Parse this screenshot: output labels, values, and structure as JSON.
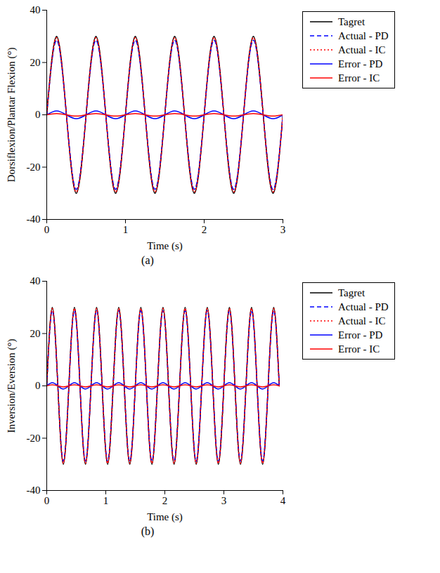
{
  "chart_data": [
    {
      "type": "line",
      "caption": "(a)",
      "x_label": "Time (s)",
      "y_label": "Dorsiflexion/Plantar Flexion (°)",
      "xlim": [
        0,
        3
      ],
      "xticks": [
        0,
        1,
        2,
        3
      ],
      "ylim": [
        -40,
        40
      ],
      "yticks": [
        -40,
        -20,
        0,
        20,
        40
      ],
      "legend": "right",
      "x": [
        0,
        0.125,
        0.25,
        0.375,
        0.5,
        0.625,
        0.75,
        0.875,
        1,
        1.125,
        1.25,
        1.375,
        1.5,
        1.625,
        1.75,
        1.875,
        2,
        2.125,
        2.25,
        2.375,
        2.5,
        2.625,
        2.75,
        2.875,
        3
      ],
      "series": [
        {
          "name": "Tagret",
          "color": "#000000",
          "line_style": "solid",
          "values": [
            0,
            30,
            0,
            -30,
            0,
            30,
            0,
            -30,
            0,
            30,
            0,
            -30,
            0,
            30,
            0,
            -30,
            0,
            30,
            0,
            -30,
            0,
            30,
            0,
            -30,
            0
          ]
        },
        {
          "name": "Actual - PD",
          "color": "#0000ff",
          "line_style": "dashed",
          "values": [
            0,
            28.5,
            0,
            -28.5,
            0,
            28.5,
            0,
            -28.5,
            0,
            28.5,
            0,
            -28.5,
            0,
            28.5,
            0,
            -28.5,
            0,
            28.5,
            0,
            -28.5,
            0,
            28.5,
            0,
            -28.5,
            0
          ]
        },
        {
          "name": "Actual - IC",
          "color": "#ff0000",
          "line_style": "dotted",
          "values": [
            0,
            29.5,
            0,
            -29.5,
            0,
            29.5,
            0,
            -29.5,
            0,
            29.5,
            0,
            -29.5,
            0,
            29.5,
            0,
            -29.5,
            0,
            29.5,
            0,
            -29.5,
            0,
            29.5,
            0,
            -29.5,
            0
          ]
        },
        {
          "name": "Error - PD",
          "color": "#0000ff",
          "line_style": "solid",
          "values": [
            0,
            1.5,
            0,
            -1.5,
            0,
            1.5,
            0,
            -1.5,
            0,
            1.5,
            0,
            -1.5,
            0,
            1.5,
            0,
            -1.5,
            0,
            1.5,
            0,
            -1.5,
            0,
            1.5,
            0,
            -1.5,
            0
          ]
        },
        {
          "name": "Error - IC",
          "color": "#ff0000",
          "line_style": "solid",
          "values": [
            0,
            0.5,
            0,
            -0.5,
            0,
            0.5,
            0,
            -0.5,
            0,
            0.5,
            0,
            -0.5,
            0,
            0.5,
            0,
            -0.5,
            0,
            0.5,
            0,
            -0.5,
            0,
            0.5,
            0,
            -0.5,
            0
          ]
        }
      ]
    },
    {
      "type": "line",
      "caption": "(b)",
      "x_label": "Time (s)",
      "y_label": "Inversion/Eversion (°)",
      "xlim": [
        0,
        4
      ],
      "xticks": [
        0,
        1,
        2,
        3,
        4
      ],
      "ylim": [
        -40,
        40
      ],
      "yticks": [
        -40,
        -20,
        0,
        20,
        40
      ],
      "legend": "right",
      "x": [
        0,
        0.094,
        0.188,
        0.281,
        0.375,
        0.469,
        0.563,
        0.656,
        0.75,
        0.844,
        0.938,
        1.031,
        1.125,
        1.219,
        1.313,
        1.406,
        1.5,
        1.594,
        1.688,
        1.781,
        1.875,
        1.969,
        2.063,
        2.156,
        2.25,
        2.344,
        2.438,
        2.531,
        2.625,
        2.719,
        2.813,
        2.906,
        3,
        3.094,
        3.188,
        3.281,
        3.375,
        3.469,
        3.563,
        3.656,
        3.75,
        3.844,
        3.938
      ],
      "series": [
        {
          "name": "Tagret",
          "color": "#000000",
          "line_style": "solid",
          "values": [
            0,
            30,
            0,
            -30,
            0,
            30,
            0,
            -30,
            0,
            30,
            0,
            -30,
            0,
            30,
            0,
            -30,
            0,
            30,
            0,
            -30,
            0,
            30,
            0,
            -30,
            0,
            30,
            0,
            -30,
            0,
            30,
            0,
            -30,
            0,
            30,
            0,
            -30,
            0,
            30,
            0,
            -30,
            0,
            30,
            0
          ]
        },
        {
          "name": "Actual - PD",
          "color": "#0000ff",
          "line_style": "dashed",
          "values": [
            0,
            28.8,
            0,
            -28.8,
            0,
            28.8,
            0,
            -28.8,
            0,
            28.8,
            0,
            -28.8,
            0,
            28.8,
            0,
            -28.8,
            0,
            28.8,
            0,
            -28.8,
            0,
            28.8,
            0,
            -28.8,
            0,
            28.8,
            0,
            -28.8,
            0,
            28.8,
            0,
            -28.8,
            0,
            28.8,
            0,
            -28.8,
            0,
            28.8,
            0,
            -28.8,
            0,
            28.8,
            0
          ]
        },
        {
          "name": "Actual - IC",
          "color": "#ff0000",
          "line_style": "dotted",
          "values": [
            0,
            29.6,
            0,
            -29.6,
            0,
            29.6,
            0,
            -29.6,
            0,
            29.6,
            0,
            -29.6,
            0,
            29.6,
            0,
            -29.6,
            0,
            29.6,
            0,
            -29.6,
            0,
            29.6,
            0,
            -29.6,
            0,
            29.6,
            0,
            -29.6,
            0,
            29.6,
            0,
            -29.6,
            0,
            29.6,
            0,
            -29.6,
            0,
            29.6,
            0,
            -29.6,
            0,
            29.6,
            0
          ]
        },
        {
          "name": "Error - PD",
          "color": "#0000ff",
          "line_style": "solid",
          "values": [
            0,
            1.2,
            0,
            -1.2,
            0,
            1.2,
            0,
            -1.2,
            0,
            1.2,
            0,
            -1.2,
            0,
            1.2,
            0,
            -1.2,
            0,
            1.2,
            0,
            -1.2,
            0,
            1.2,
            0,
            -1.2,
            0,
            1.2,
            0,
            -1.2,
            0,
            1.2,
            0,
            -1.2,
            0,
            1.2,
            0,
            -1.2,
            0,
            1.2,
            0,
            -1.2,
            0,
            1.2,
            0
          ]
        },
        {
          "name": "Error - IC",
          "color": "#ff0000",
          "line_style": "solid",
          "values": [
            0,
            0.4,
            0,
            -0.4,
            0,
            0.4,
            0,
            -0.4,
            0,
            0.4,
            0,
            -0.4,
            0,
            0.4,
            0,
            -0.4,
            0,
            0.4,
            0,
            -0.4,
            0,
            0.4,
            0,
            -0.4,
            0,
            0.4,
            0,
            -0.4,
            0,
            0.4,
            0,
            -0.4,
            0,
            0.4,
            0,
            -0.4,
            0,
            0.4,
            0,
            -0.4,
            0,
            0.4,
            0
          ]
        }
      ]
    }
  ]
}
